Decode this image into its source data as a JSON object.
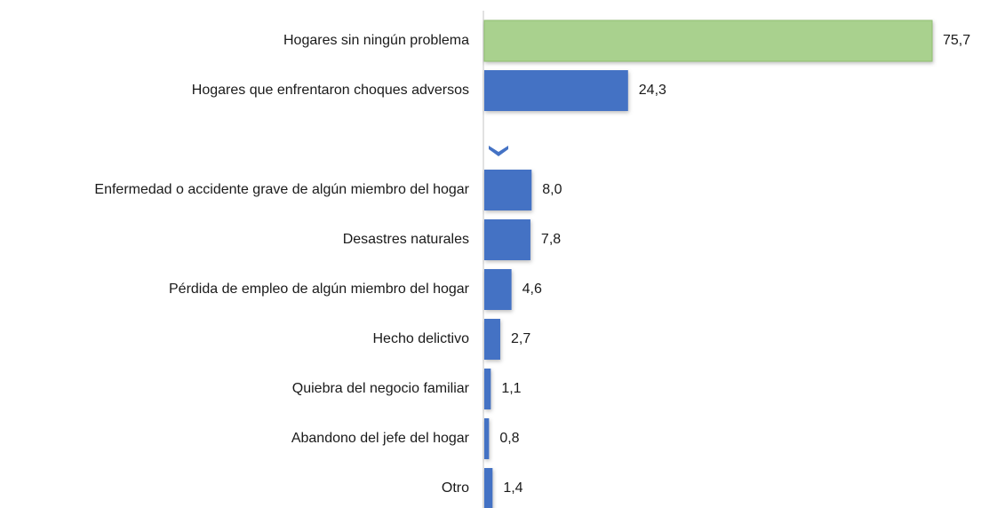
{
  "chart_data": {
    "type": "barh",
    "categories": [
      "Hogares sin ningún problema",
      "Hogares que enfrentaron choques adversos",
      null,
      "Enfermedad o accidente grave de algún miembro del hogar",
      "Desastres naturales",
      "Pérdida de empleo de algún miembro del hogar",
      "Hecho delictivo",
      "Quiebra del negocio familiar",
      "Abandono del jefe del hogar",
      "Otro"
    ],
    "values": [
      75.7,
      24.3,
      null,
      8.0,
      7.8,
      4.6,
      2.7,
      1.1,
      0.8,
      1.4
    ],
    "value_labels": [
      "75,7",
      "24,3",
      null,
      "8,0",
      "7,8",
      "4,6",
      "2,7",
      "1,1",
      "0,8",
      "1,4"
    ],
    "colors": [
      "#a9d18e",
      "#4472c4",
      null,
      "#4472c4",
      "#4472c4",
      "#4472c4",
      "#4472c4",
      "#4472c4",
      "#4472c4",
      "#4472c4"
    ],
    "xlim": [
      0,
      76
    ]
  }
}
